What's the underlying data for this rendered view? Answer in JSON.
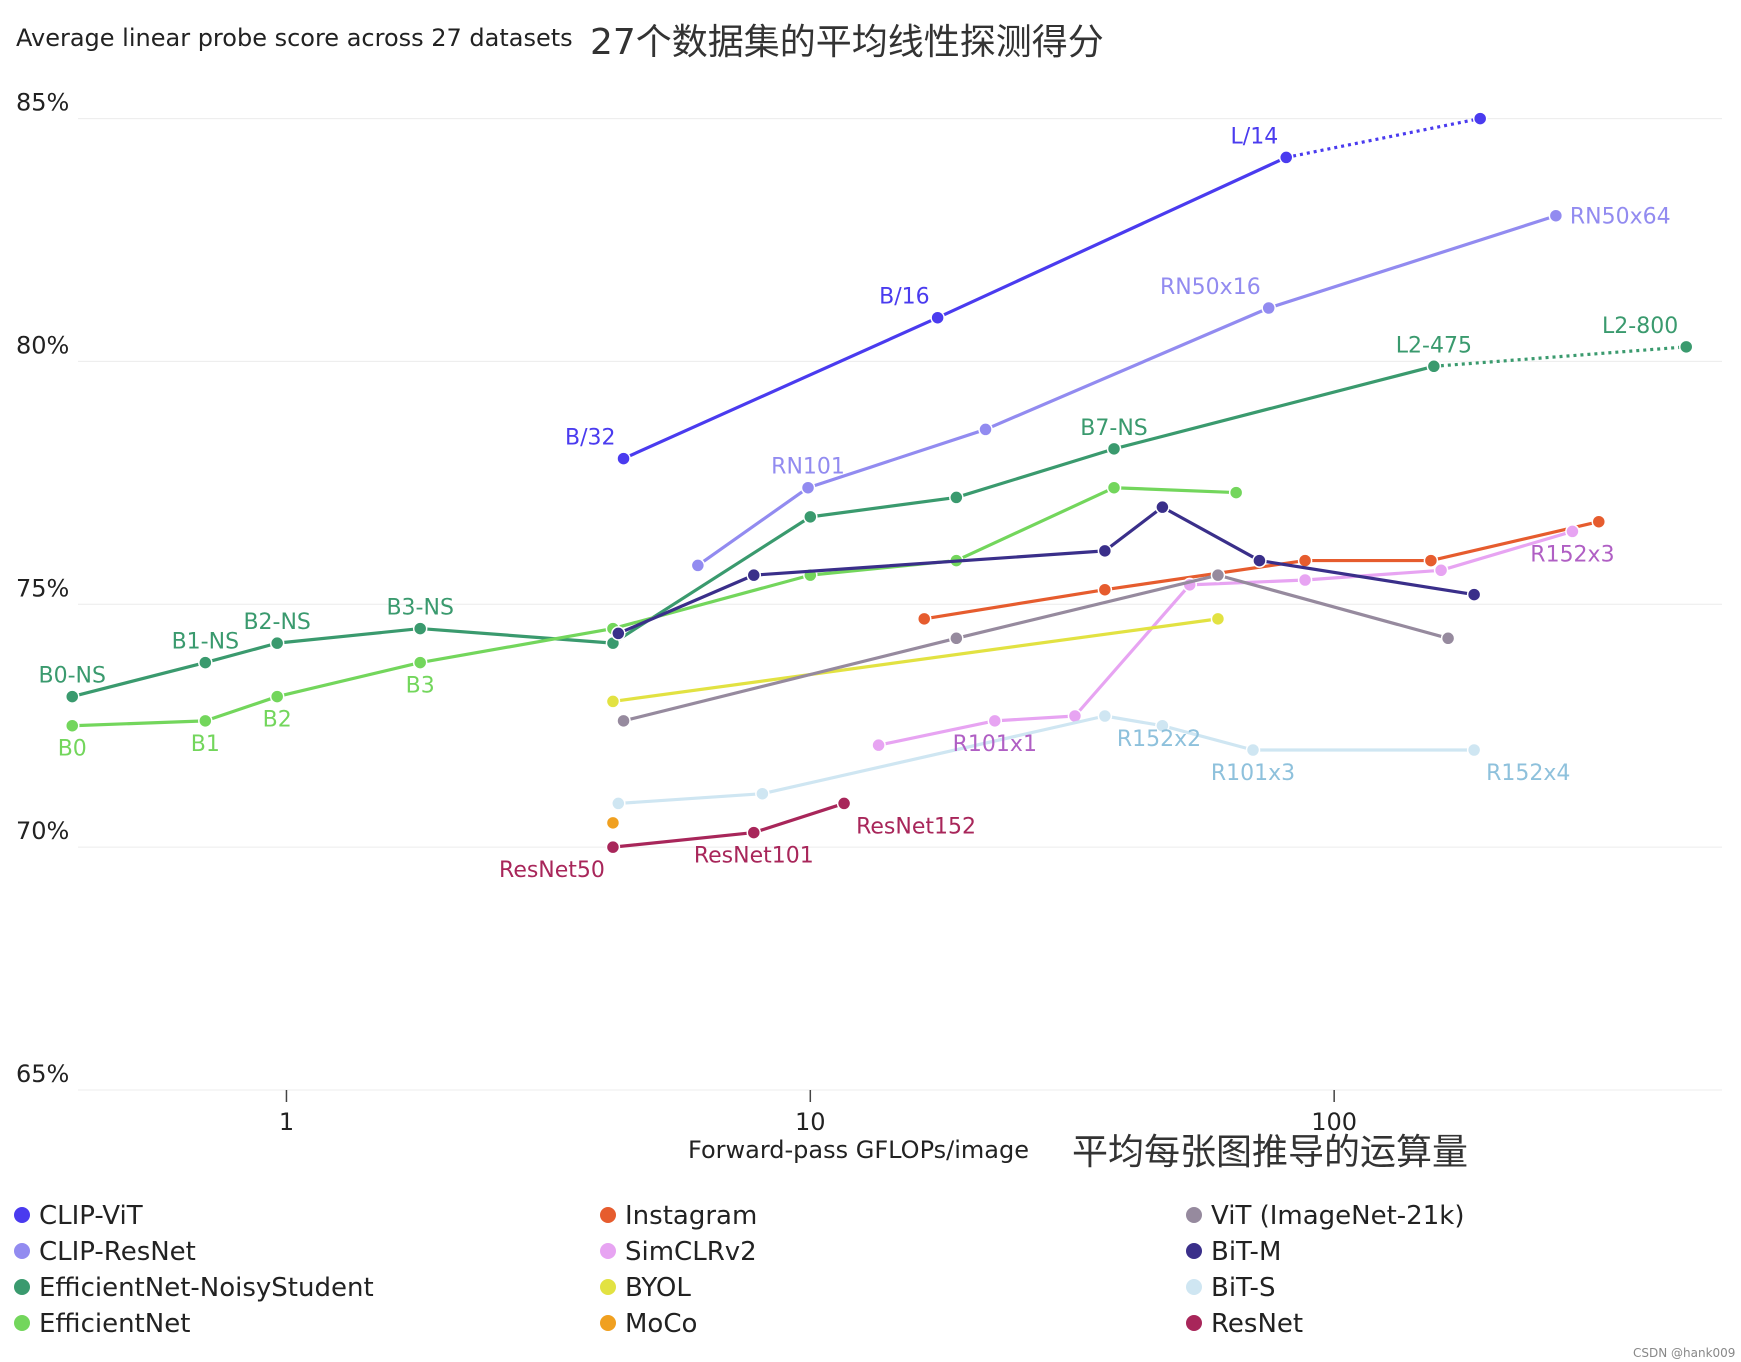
{
  "chart_data": {
    "type": "line",
    "title": "Average linear probe score across 27 datasets",
    "title_zh": "27个数据集的平均线性探测得分",
    "xlabel": "Forward-pass GFLOPs/image",
    "xlabel_zh": "平均每张图推导的运算量",
    "x_scale": "log",
    "xlim": [
      0.4,
      550
    ],
    "ylim": [
      65,
      86
    ],
    "x_ticks": [
      1,
      10,
      100
    ],
    "x_tick_labels": [
      "1",
      "10",
      "100"
    ],
    "y_ticks": [
      65,
      70,
      75,
      80,
      85
    ],
    "y_tick_labels": [
      "65%",
      "70%",
      "75%",
      "80%",
      "85%"
    ],
    "grid": "horizontal",
    "legend_position": "bottom",
    "series": [
      {
        "name": "CLIP-ViT",
        "color": "#4a3bef",
        "points": [
          {
            "x": 4.4,
            "y": 78.0,
            "label": "B/32",
            "lpos": "left-up"
          },
          {
            "x": 17.5,
            "y": 80.9,
            "label": "B/16",
            "lpos": "left-up"
          },
          {
            "x": 81,
            "y": 84.2,
            "label": "L/14",
            "lpos": "left-up"
          },
          {
            "x": 190,
            "y": 85.0
          }
        ],
        "dotted_from": 2
      },
      {
        "name": "CLIP-ResNet",
        "color": "#928bf0",
        "points": [
          {
            "x": 6.1,
            "y": 75.8
          },
          {
            "x": 9.9,
            "y": 77.4,
            "label": "RN101",
            "lpos": "up"
          },
          {
            "x": 21.6,
            "y": 78.6
          },
          {
            "x": 75,
            "y": 81.1,
            "label": "RN50x16",
            "lpos": "left-up"
          },
          {
            "x": 265,
            "y": 83.0,
            "label": "RN50x64",
            "lpos": "right"
          }
        ]
      },
      {
        "name": "EfficientNet-NoisyStudent",
        "color": "#3a9a6e",
        "points": [
          {
            "x": 0.39,
            "y": 73.1,
            "label": "B0-NS",
            "lpos": "up"
          },
          {
            "x": 0.7,
            "y": 73.8,
            "label": "B1-NS",
            "lpos": "up"
          },
          {
            "x": 0.96,
            "y": 74.2,
            "label": "B2-NS",
            "lpos": "up"
          },
          {
            "x": 1.8,
            "y": 74.5,
            "label": "B3-NS",
            "lpos": "up"
          },
          {
            "x": 4.2,
            "y": 74.2
          },
          {
            "x": 10,
            "y": 76.8
          },
          {
            "x": 19,
            "y": 77.2
          },
          {
            "x": 38,
            "y": 78.2,
            "label": "B7-NS",
            "lpos": "up"
          },
          {
            "x": 155,
            "y": 79.9,
            "label": "L2-475",
            "lpos": "up"
          },
          {
            "x": 470,
            "y": 80.3,
            "label": "L2-800",
            "lpos": "left-up"
          }
        ],
        "dotted_from": 8
      },
      {
        "name": "EfficientNet",
        "color": "#73d65c",
        "points": [
          {
            "x": 0.39,
            "y": 72.5,
            "label": "B0",
            "lpos": "down"
          },
          {
            "x": 0.7,
            "y": 72.6,
            "label": "B1",
            "lpos": "down"
          },
          {
            "x": 0.96,
            "y": 73.1,
            "label": "B2",
            "lpos": "down"
          },
          {
            "x": 1.8,
            "y": 73.8,
            "label": "B3",
            "lpos": "down"
          },
          {
            "x": 4.2,
            "y": 74.5
          },
          {
            "x": 10,
            "y": 75.6
          },
          {
            "x": 19,
            "y": 75.9
          },
          {
            "x": 38,
            "y": 77.4
          },
          {
            "x": 65,
            "y": 77.3
          }
        ]
      },
      {
        "name": "Instagram",
        "color": "#e65c2e",
        "points": [
          {
            "x": 16.5,
            "y": 74.7
          },
          {
            "x": 36.5,
            "y": 75.3
          },
          {
            "x": 88,
            "y": 75.9
          },
          {
            "x": 153,
            "y": 75.9
          },
          {
            "x": 320,
            "y": 76.7
          }
        ]
      },
      {
        "name": "SimCLRv2",
        "color": "#e7a4f2",
        "label_color": "#b05fc4",
        "points": [
          {
            "x": 13.5,
            "y": 72.1
          },
          {
            "x": 22.5,
            "y": 72.6,
            "label": "R101x1",
            "lpos": "down"
          },
          {
            "x": 32,
            "y": 72.7
          },
          {
            "x": 53,
            "y": 75.4
          },
          {
            "x": 88,
            "y": 75.5
          },
          {
            "x": 160,
            "y": 75.7
          },
          {
            "x": 285,
            "y": 76.5,
            "label": "R152x3",
            "lpos": "down"
          }
        ]
      },
      {
        "name": "BYOL",
        "color": "#e2e242",
        "points": [
          {
            "x": 4.2,
            "y": 73.0
          },
          {
            "x": 60,
            "y": 74.7
          }
        ]
      },
      {
        "name": "MoCo",
        "color": "#f0a020",
        "points": [
          {
            "x": 4.2,
            "y": 70.5
          }
        ]
      },
      {
        "name": "ViT (ImageNet-21k)",
        "color": "#968a9e",
        "points": [
          {
            "x": 4.4,
            "y": 72.6
          },
          {
            "x": 19,
            "y": 74.3
          },
          {
            "x": 60,
            "y": 75.6
          },
          {
            "x": 165,
            "y": 74.3
          }
        ]
      },
      {
        "name": "BiT-M",
        "color": "#3a2f8a",
        "points": [
          {
            "x": 4.3,
            "y": 74.4
          },
          {
            "x": 7.8,
            "y": 75.6
          },
          {
            "x": 36.5,
            "y": 76.1
          },
          {
            "x": 47,
            "y": 77.0
          },
          {
            "x": 72,
            "y": 75.9
          },
          {
            "x": 185,
            "y": 75.2
          }
        ]
      },
      {
        "name": "BiT-S",
        "color": "#cfe6f2",
        "label_color": "#8ec1dc",
        "points": [
          {
            "x": 4.3,
            "y": 70.9
          },
          {
            "x": 8.1,
            "y": 71.1
          },
          {
            "x": 36.5,
            "y": 72.7,
            "label": "R152x2",
            "lpos": "right-down"
          },
          {
            "x": 47,
            "y": 72.5
          },
          {
            "x": 70,
            "y": 72.0,
            "label": "R101x3",
            "lpos": "down"
          },
          {
            "x": 185,
            "y": 72.0,
            "label": "R152x4",
            "lpos": "right-down"
          }
        ]
      },
      {
        "name": "ResNet",
        "color": "#a8265a",
        "points": [
          {
            "x": 4.2,
            "y": 70.0,
            "label": "ResNet50",
            "lpos": "left-down"
          },
          {
            "x": 7.8,
            "y": 70.3,
            "label": "ResNet101",
            "lpos": "down"
          },
          {
            "x": 11.6,
            "y": 70.9,
            "label": "ResNet152",
            "lpos": "right-down"
          }
        ]
      }
    ]
  },
  "watermark": "CSDN @hank009"
}
